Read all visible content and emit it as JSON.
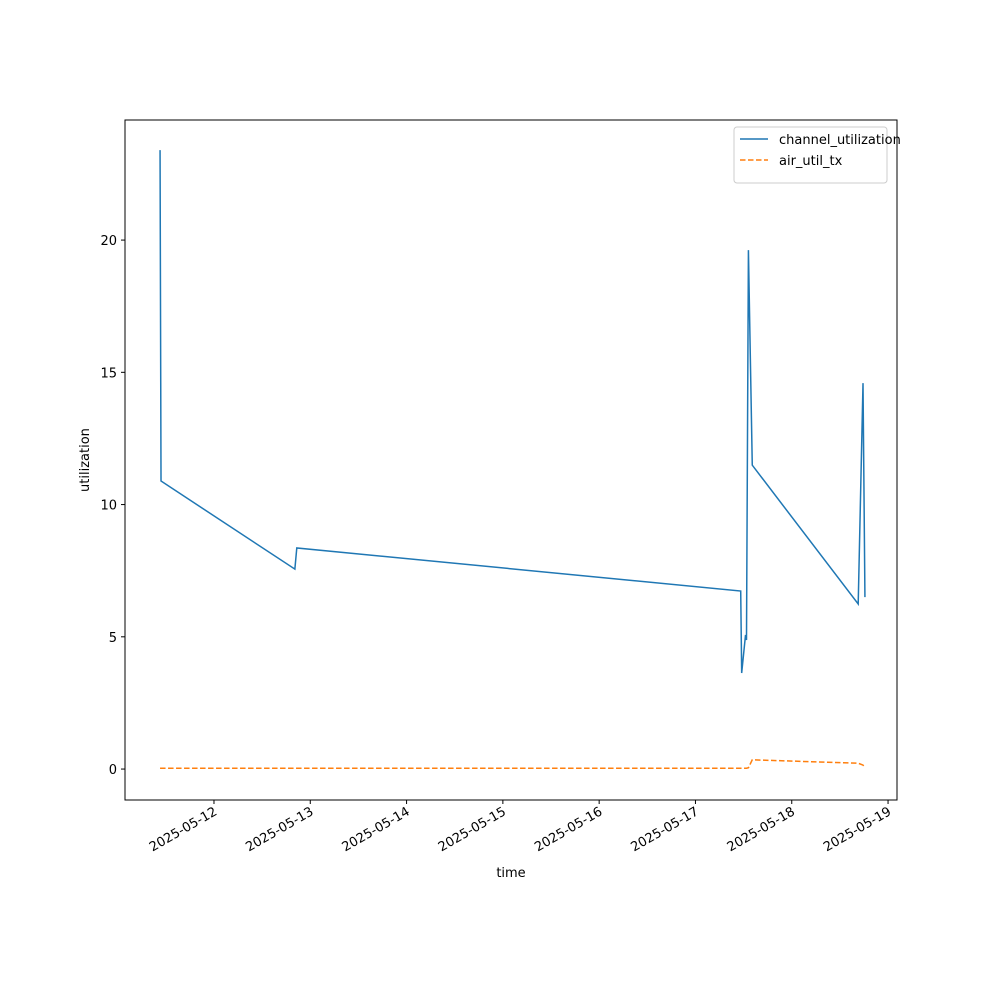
{
  "chart_data": {
    "type": "line",
    "xlabel": "time",
    "ylabel": "utilization",
    "x": [
      11.44,
      11.45,
      12.84,
      12.86,
      17.47,
      17.48,
      17.52,
      17.53,
      17.55,
      17.59,
      18.69,
      18.74,
      18.76
    ],
    "series": [
      {
        "name": "channel_utilization",
        "color": "#1f77b4",
        "dash": "solid",
        "values": [
          23.4,
          10.89,
          7.56,
          8.36,
          6.73,
          3.63,
          5.07,
          4.88,
          19.62,
          11.49,
          6.24,
          14.59,
          6.5
        ]
      },
      {
        "name": "air_util_tx",
        "color": "#ff7f0e",
        "dash": "dashed",
        "values": [
          0.03,
          0.03,
          0.03,
          0.03,
          0.03,
          0.03,
          0.03,
          0.03,
          0.05,
          0.35,
          0.22,
          0.15,
          0.05
        ]
      }
    ],
    "xlim": [
      11.076,
      19.093
    ],
    "xticks": [
      {
        "value": 12,
        "label": "2025-05-12"
      },
      {
        "value": 13,
        "label": "2025-05-13"
      },
      {
        "value": 14,
        "label": "2025-05-14"
      },
      {
        "value": 15,
        "label": "2025-05-15"
      },
      {
        "value": 16,
        "label": "2025-05-16"
      },
      {
        "value": 17,
        "label": "2025-05-17"
      },
      {
        "value": 18,
        "label": "2025-05-18"
      },
      {
        "value": 19,
        "label": "2025-05-19"
      }
    ],
    "ylim": [
      -1.17,
      24.54
    ],
    "yticks": [
      0,
      5,
      10,
      15,
      20
    ],
    "legend": "upper right",
    "grid": false
  }
}
